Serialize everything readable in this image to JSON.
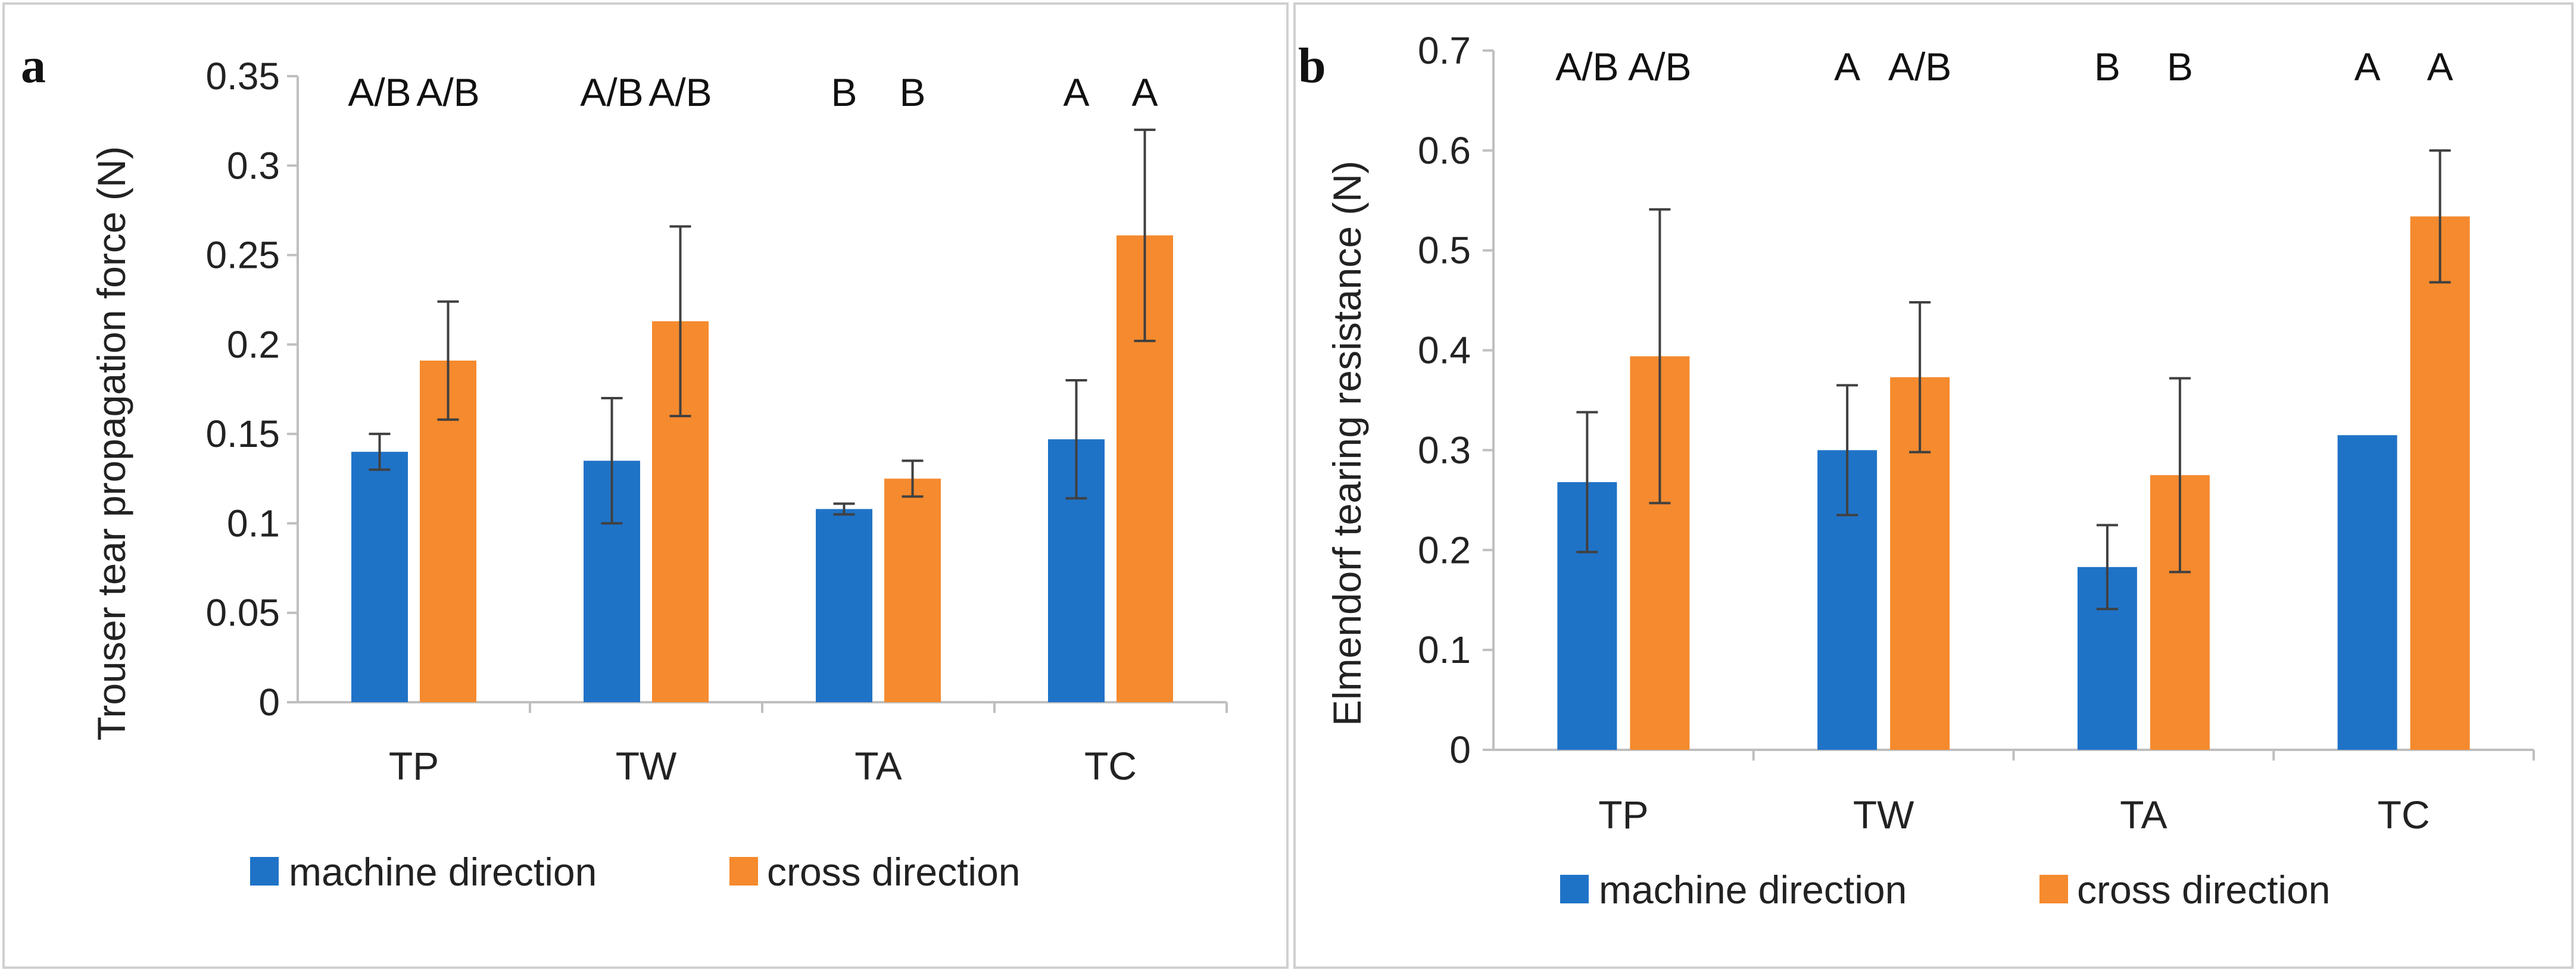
{
  "colors": {
    "machine": "#1f73c7",
    "cross": "#f58a2e",
    "frame": "#d0d0d0",
    "axis": "#bfbfbf",
    "errorbar": "#404040"
  },
  "chart_data": [
    {
      "type": "bar",
      "panel_label": "a",
      "title": "",
      "xlabel": "",
      "ylabel": "Trouser tear propagation force (N)",
      "categories": [
        "TP",
        "TW",
        "TA",
        "TC"
      ],
      "ylim": [
        0,
        0.35
      ],
      "yticks": [
        "0",
        "0.05",
        "0.1",
        "0.15",
        "0.2",
        "0.25",
        "0.3",
        "0.35"
      ],
      "grid": false,
      "legend_position": "bottom",
      "series": [
        {
          "name": "machine direction",
          "values": [
            0.14,
            0.135,
            0.108,
            0.147
          ],
          "errors": [
            0.01,
            0.035,
            0.003,
            0.033
          ]
        },
        {
          "name": "cross direction",
          "values": [
            0.191,
            0.213,
            0.125,
            0.261
          ],
          "errors": [
            0.033,
            0.053,
            0.01,
            0.059
          ]
        }
      ],
      "annotations": [
        [
          "A/B",
          "A/B"
        ],
        [
          "A/B",
          "A/B"
        ],
        [
          "B",
          "B"
        ],
        [
          "A",
          "A"
        ]
      ]
    },
    {
      "type": "bar",
      "panel_label": "b",
      "title": "",
      "xlabel": "",
      "ylabel": "Elmendorf tearing resistance (N)",
      "categories": [
        "TP",
        "TW",
        "TA",
        "TC"
      ],
      "ylim": [
        0,
        0.7
      ],
      "yticks": [
        "0",
        "0.1",
        "0.2",
        "0.3",
        "0.4",
        "0.5",
        "0.6",
        "0.7"
      ],
      "grid": false,
      "legend_position": "bottom",
      "series": [
        {
          "name": "machine direction",
          "values": [
            0.268,
            0.3,
            0.183,
            0.315
          ],
          "errors": [
            0.07,
            0.065,
            0.042,
            0
          ]
        },
        {
          "name": "cross direction",
          "values": [
            0.394,
            0.373,
            0.275,
            0.534
          ],
          "errors": [
            0.147,
            0.075,
            0.097,
            0.066
          ]
        }
      ],
      "annotations": [
        [
          "A/B",
          "A/B"
        ],
        [
          "A",
          "A/B"
        ],
        [
          "B",
          "B"
        ],
        [
          "A",
          "A"
        ]
      ]
    }
  ]
}
